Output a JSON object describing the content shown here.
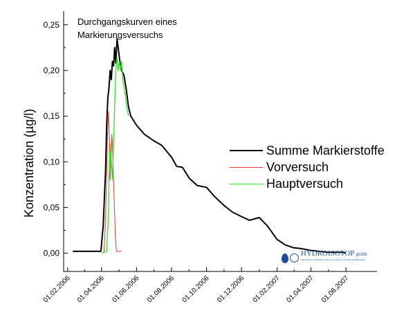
{
  "chart_data": {
    "type": "line",
    "title_lines": [
      "Durchgangskurven eines",
      "Markierungsversuchs"
    ],
    "ylabel": "Konzentration (µg/l)",
    "xlabel": "",
    "x_axis_type": "date",
    "xlim": [
      "2006-01-25",
      "2007-07-25"
    ],
    "ylim": [
      -0.02,
      0.265
    ],
    "x_tick_labels": [
      "01.02.2006",
      "01.04.2006",
      "01.06.2006",
      "01.08.2006",
      "01.10.2006",
      "01.12.2006",
      "01.02.2007",
      "01.04.2007",
      "01.06.2007"
    ],
    "x_ticks": [
      "2006-02-01",
      "2006-04-01",
      "2006-06-01",
      "2006-08-01",
      "2006-10-01",
      "2006-12-01",
      "2007-02-01",
      "2007-04-01",
      "2007-06-01"
    ],
    "y_ticks": [
      0.0,
      0.05,
      0.1,
      0.15,
      0.2,
      0.25
    ],
    "y_tick_labels": [
      "0,00",
      "0,05",
      "0,10",
      "0,15",
      "0,20",
      "0,25"
    ],
    "grid": false,
    "legend_position": "right-middle",
    "series": [
      {
        "name": "Summe Markierstoffe",
        "color": "#000000",
        "points": [
          [
            "2006-02-10",
            0.002
          ],
          [
            "2006-03-10",
            0.002
          ],
          [
            "2006-03-31",
            0.002
          ],
          [
            "2006-04-04",
            0.03
          ],
          [
            "2006-04-08",
            0.09
          ],
          [
            "2006-04-10",
            0.14
          ],
          [
            "2006-04-12",
            0.17
          ],
          [
            "2006-04-14",
            0.18
          ],
          [
            "2006-04-16",
            0.2
          ],
          [
            "2006-04-18",
            0.19
          ],
          [
            "2006-04-20",
            0.21
          ],
          [
            "2006-04-22",
            0.205
          ],
          [
            "2006-04-24",
            0.225
          ],
          [
            "2006-04-26",
            0.208
          ],
          [
            "2006-04-28",
            0.235
          ],
          [
            "2006-04-30",
            0.225
          ],
          [
            "2006-05-02",
            0.215
          ],
          [
            "2006-05-04",
            0.205
          ],
          [
            "2006-05-06",
            0.2
          ],
          [
            "2006-05-10",
            0.195
          ],
          [
            "2006-05-14",
            0.18
          ],
          [
            "2006-05-18",
            0.16
          ],
          [
            "2006-05-22",
            0.15
          ],
          [
            "2006-06-01",
            0.14
          ],
          [
            "2006-06-15",
            0.13
          ],
          [
            "2006-07-01",
            0.123
          ],
          [
            "2006-07-15",
            0.118
          ],
          [
            "2006-08-01",
            0.105
          ],
          [
            "2006-08-10",
            0.095
          ],
          [
            "2006-08-20",
            0.094
          ],
          [
            "2006-09-01",
            0.082
          ],
          [
            "2006-09-15",
            0.074
          ],
          [
            "2006-10-01",
            0.072
          ],
          [
            "2006-10-15",
            0.062
          ],
          [
            "2006-11-01",
            0.052
          ],
          [
            "2006-11-15",
            0.045
          ],
          [
            "2006-12-01",
            0.04
          ],
          [
            "2006-12-15",
            0.036
          ],
          [
            "2007-01-01",
            0.039
          ],
          [
            "2007-01-15",
            0.03
          ],
          [
            "2007-02-01",
            0.015
          ],
          [
            "2007-02-15",
            0.009
          ],
          [
            "2007-03-01",
            0.006
          ],
          [
            "2007-03-15",
            0.005
          ],
          [
            "2007-04-01",
            0.003
          ],
          [
            "2007-05-01",
            0.001
          ],
          [
            "2007-05-25",
            0.001
          ],
          [
            "2007-06-01",
            0.0
          ]
        ]
      },
      {
        "name": "Vorversuch",
        "color": "#e8352e",
        "points": [
          [
            "2006-04-05",
            0.0
          ],
          [
            "2006-04-07",
            0.02
          ],
          [
            "2006-04-09",
            0.06
          ],
          [
            "2006-04-11",
            0.12
          ],
          [
            "2006-04-13",
            0.155
          ],
          [
            "2006-04-14",
            0.14
          ],
          [
            "2006-04-15",
            0.12
          ],
          [
            "2006-04-16",
            0.08
          ],
          [
            "2006-04-17",
            0.095
          ],
          [
            "2006-04-18",
            0.11
          ],
          [
            "2006-04-19",
            0.13
          ],
          [
            "2006-04-20",
            0.12
          ],
          [
            "2006-04-21",
            0.1
          ],
          [
            "2006-04-23",
            0.06
          ],
          [
            "2006-04-25",
            0.02
          ],
          [
            "2006-04-27",
            0.002
          ],
          [
            "2006-05-06",
            0.002
          ]
        ]
      },
      {
        "name": "Hauptversuch",
        "color": "#33e02b",
        "points": [
          [
            "2006-04-01",
            0.0
          ],
          [
            "2006-04-10",
            0.002
          ],
          [
            "2006-04-13",
            0.04
          ],
          [
            "2006-04-15",
            0.11
          ],
          [
            "2006-04-16",
            0.09
          ],
          [
            "2006-04-17",
            0.12
          ],
          [
            "2006-04-18",
            0.1
          ],
          [
            "2006-04-20",
            0.08
          ],
          [
            "2006-04-22",
            0.12
          ],
          [
            "2006-04-24",
            0.16
          ],
          [
            "2006-04-26",
            0.2
          ],
          [
            "2006-04-28",
            0.215
          ],
          [
            "2006-04-30",
            0.2
          ],
          [
            "2006-05-02",
            0.21
          ],
          [
            "2006-05-04",
            0.2
          ],
          [
            "2006-05-06",
            0.21
          ],
          [
            "2006-05-08",
            0.19
          ],
          [
            "2006-05-12",
            0.175
          ],
          [
            "2006-05-15",
            0.16
          ],
          [
            "2006-05-18",
            0.15
          ]
        ]
      }
    ]
  },
  "logo": {
    "name": "HYDROISOTOP",
    "suffix": "gmbh",
    "tagline": "Laboratorium zur Bestimmung von Isotopen in Umwelt und Hydrologie"
  },
  "colors": {
    "axis": "#000000",
    "logo_blue": "#1d4f9c"
  }
}
